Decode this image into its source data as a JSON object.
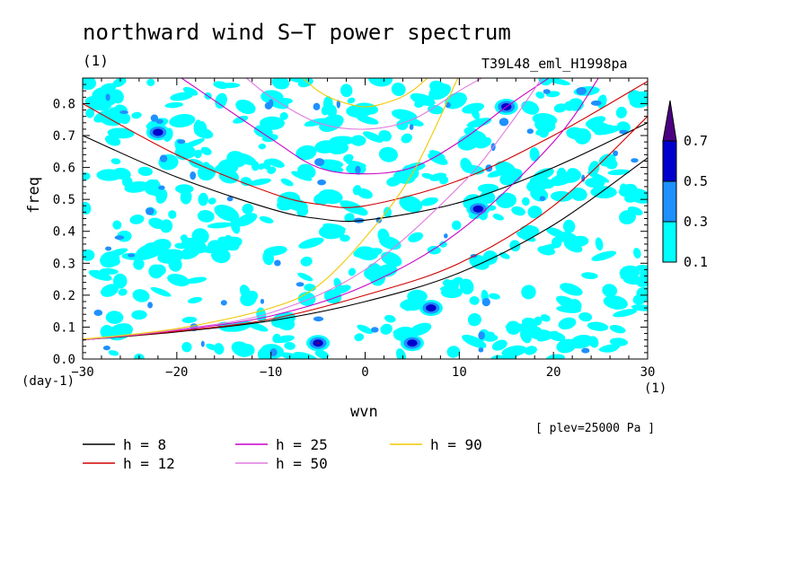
{
  "title": "northward wind S−T power spectrum",
  "subtitle_left": "(1)",
  "subtitle_right": "T39L48_eml_H1998pa",
  "plev_note": "[ plev=25000 Pa ]",
  "chart_data": {
    "type": "heatmap",
    "xlabel": "wvn",
    "ylabel": "freq",
    "x_unit": "(1)",
    "y_unit": "(day-1)",
    "xlim": [
      -30,
      30
    ],
    "ylim": [
      0,
      0.88
    ],
    "x_ticks": [
      -30,
      -20,
      -10,
      0,
      10,
      20,
      30
    ],
    "x_tick_labels": [
      "−30",
      "−20",
      "−10",
      "0",
      "10",
      "20",
      "30"
    ],
    "y_ticks": [
      0,
      0.1,
      0.2,
      0.3,
      0.4,
      0.5,
      0.6,
      0.7,
      0.8
    ],
    "y_tick_labels": [
      "0.0",
      "0.1",
      "0.2",
      "0.3",
      "0.4",
      "0.5",
      "0.6",
      "0.7",
      "0.8"
    ],
    "contour_levels": [
      0.1,
      0.3,
      0.5,
      0.7
    ],
    "colorbar_labels": [
      "0.1",
      "0.3",
      "0.5",
      "0.7"
    ],
    "colors": {
      "level_0_1": "#00ffff",
      "level_0_3": "#1e90ff",
      "level_0_5": "#0000cd",
      "level_0_7": "#4b0082"
    },
    "notable_maxima": [
      {
        "x": -5,
        "y": 0.05,
        "level": 0.7
      },
      {
        "x": 5,
        "y": 0.05,
        "level": 0.5
      },
      {
        "x": 7,
        "y": 0.16,
        "level": 0.5
      },
      {
        "x": 15,
        "y": 0.79,
        "level": 0.5
      },
      {
        "x": 12,
        "y": 0.47,
        "level": 0.5
      },
      {
        "x": -22,
        "y": 0.71,
        "level": 0.5
      }
    ],
    "curves": [
      {
        "name": "h =  8",
        "h": 8,
        "color": "#000000",
        "points": [
          [
            -30,
            0.7
          ],
          [
            -20,
            0.57
          ],
          [
            -10,
            0.47
          ],
          [
            -5,
            0.44
          ],
          [
            0,
            0.435
          ],
          [
            10,
            0.49
          ],
          [
            20,
            0.6
          ],
          [
            30,
            0.74
          ]
        ]
      },
      {
        "name": "h = 12",
        "h": 12,
        "color": "#d00000",
        "points": [
          [
            -30,
            0.8
          ],
          [
            -20,
            0.64
          ],
          [
            -10,
            0.52
          ],
          [
            -5,
            0.485
          ],
          [
            0,
            0.48
          ],
          [
            10,
            0.56
          ],
          [
            20,
            0.7
          ],
          [
            30,
            0.87
          ]
        ]
      },
      {
        "name": "h = 25",
        "h": 25,
        "color": "#c800c8",
        "points": [
          [
            -20,
            0.89
          ],
          [
            -10,
            0.69
          ],
          [
            -5,
            0.6
          ],
          [
            0,
            0.58
          ],
          [
            5,
            0.6
          ],
          [
            10,
            0.68
          ],
          [
            15,
            0.79
          ],
          [
            20,
            0.89
          ]
        ]
      },
      {
        "name": "h = 50",
        "h": 50,
        "color": "#e07ae0",
        "points": [
          [
            -13,
            0.89
          ],
          [
            -10,
            0.82
          ],
          [
            -5,
            0.74
          ],
          [
            0,
            0.72
          ],
          [
            5,
            0.75
          ],
          [
            10,
            0.84
          ],
          [
            13,
            0.89
          ]
        ]
      },
      {
        "name": "h = 90",
        "h": 90,
        "color": "#f0c800",
        "points": [
          [
            -7,
            0.89
          ],
          [
            -5,
            0.84
          ],
          [
            -3,
            0.81
          ],
          [
            0,
            0.79
          ],
          [
            3,
            0.81
          ],
          [
            5,
            0.84
          ],
          [
            7,
            0.89
          ]
        ]
      },
      {
        "name": "h =  8",
        "h": 8,
        "color": "#000000",
        "points": [
          [
            -30,
            0.06
          ],
          [
            -20,
            0.085
          ],
          [
            -10,
            0.12
          ],
          [
            0,
            0.18
          ],
          [
            10,
            0.27
          ],
          [
            20,
            0.42
          ],
          [
            30,
            0.63
          ]
        ]
      },
      {
        "name": "h = 12",
        "h": 12,
        "color": "#d00000",
        "points": [
          [
            -30,
            0.06
          ],
          [
            -20,
            0.087
          ],
          [
            -10,
            0.125
          ],
          [
            0,
            0.2
          ],
          [
            10,
            0.3
          ],
          [
            20,
            0.48
          ],
          [
            30,
            0.76
          ]
        ]
      },
      {
        "name": "h = 25",
        "h": 25,
        "color": "#c800c8",
        "points": [
          [
            -30,
            0.06
          ],
          [
            -20,
            0.09
          ],
          [
            -10,
            0.135
          ],
          [
            0,
            0.23
          ],
          [
            10,
            0.4
          ],
          [
            20,
            0.68
          ],
          [
            25,
            0.89
          ]
        ]
      },
      {
        "name": "h = 50",
        "h": 50,
        "color": "#e07ae0",
        "points": [
          [
            -30,
            0.06
          ],
          [
            -20,
            0.092
          ],
          [
            -10,
            0.145
          ],
          [
            0,
            0.28
          ],
          [
            10,
            0.54
          ],
          [
            15,
            0.72
          ],
          [
            19,
            0.89
          ]
        ]
      },
      {
        "name": "h = 90",
        "h": 90,
        "color": "#f0c800",
        "points": [
          [
            -30,
            0.062
          ],
          [
            -20,
            0.095
          ],
          [
            -10,
            0.16
          ],
          [
            -5,
            0.23
          ],
          [
            0,
            0.38
          ],
          [
            5,
            0.58
          ],
          [
            10,
            0.89
          ]
        ]
      }
    ],
    "legend": [
      {
        "label": "h =  8",
        "color": "#000000"
      },
      {
        "label": "h = 12",
        "color": "#d00000"
      },
      {
        "label": "h = 25",
        "color": "#c800c8"
      },
      {
        "label": "h = 50",
        "color": "#e07ae0"
      },
      {
        "label": "h = 90",
        "color": "#f0c800"
      }
    ]
  }
}
